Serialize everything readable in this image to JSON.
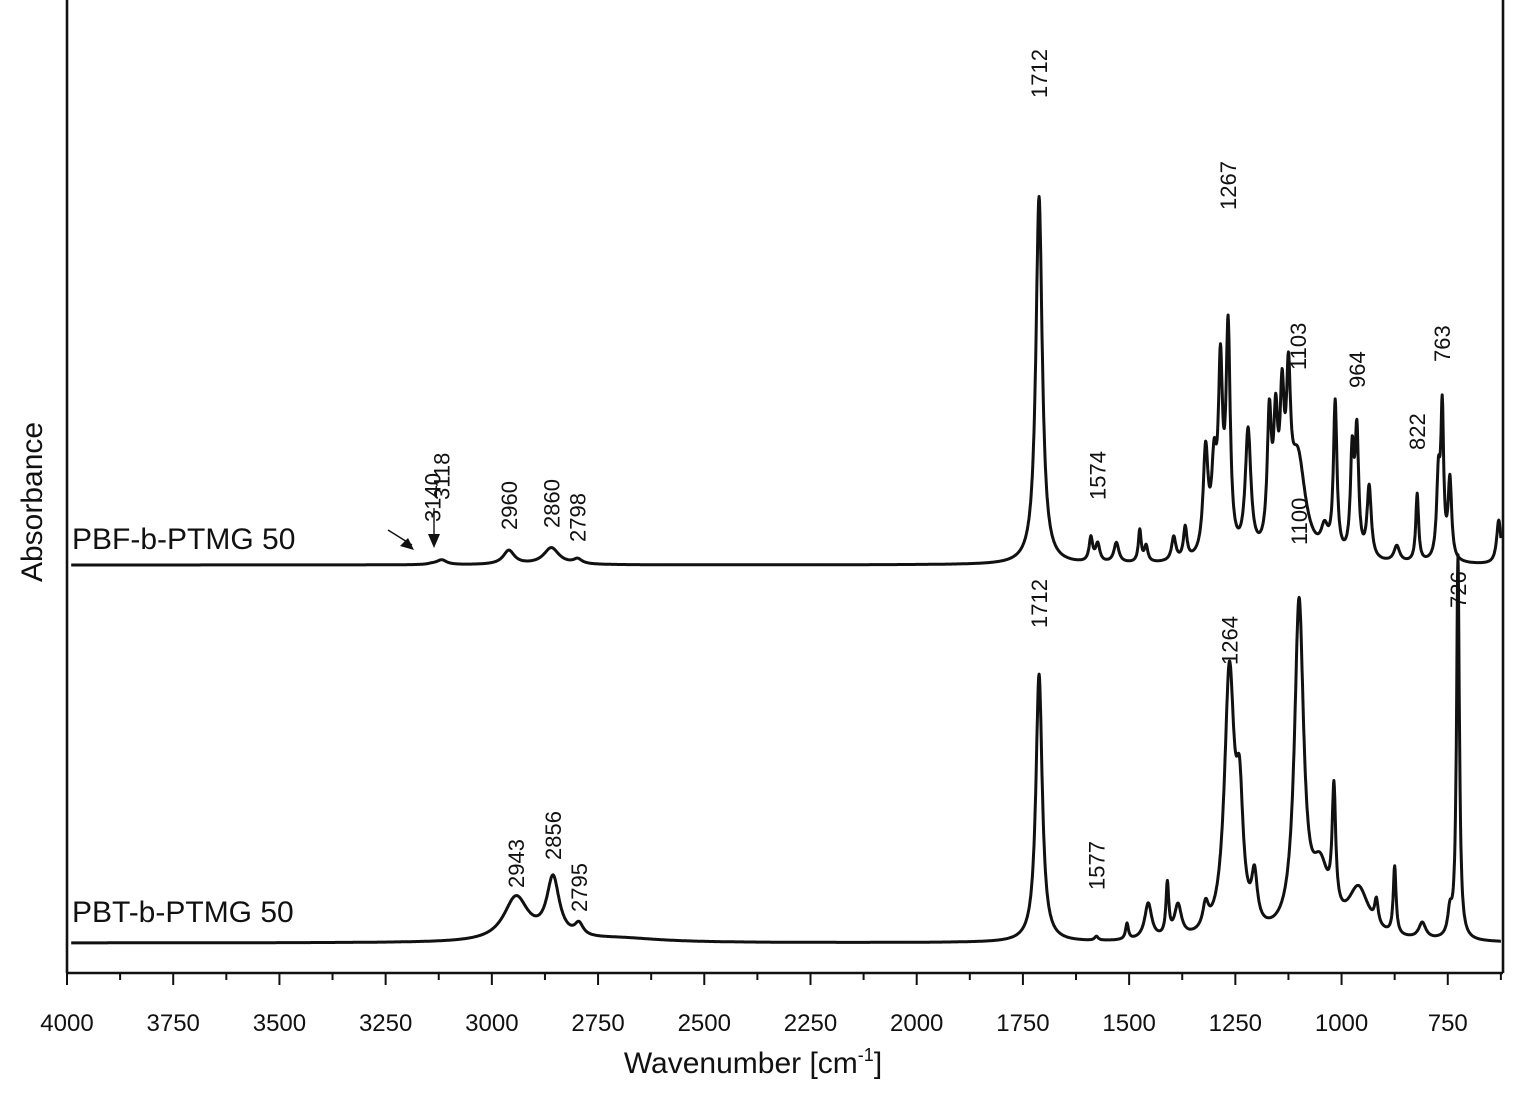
{
  "chart_data": {
    "type": "line",
    "xlabel": "Wavenumber [cm⁻¹]",
    "ylabel": "Absorbance",
    "x_reversed": true,
    "xlim": [
      4000,
      620
    ],
    "x_ticks": [
      4000,
      3750,
      3500,
      3250,
      3000,
      2750,
      2500,
      2250,
      2000,
      1750,
      1500,
      1250,
      1000,
      750
    ],
    "y_ticks_shown": false,
    "grid": false,
    "legend": "none",
    "series": [
      {
        "name": "PBF-b-PTMG 50",
        "baseline_offset": 1.0,
        "peaks": [
          {
            "x": 3140,
            "y": 0.002,
            "w": 12
          },
          {
            "x": 3118,
            "y": 0.012,
            "w": 14
          },
          {
            "x": 2960,
            "y": 0.035,
            "w": 16
          },
          {
            "x": 2860,
            "y": 0.042,
            "w": 22
          },
          {
            "x": 2798,
            "y": 0.012,
            "w": 12
          },
          {
            "x": 1712,
            "y": 0.92,
            "w": 9
          },
          {
            "x": 1590,
            "y": 0.06,
            "w": 5
          },
          {
            "x": 1574,
            "y": 0.045,
            "w": 6
          },
          {
            "x": 1530,
            "y": 0.05,
            "w": 7
          },
          {
            "x": 1475,
            "y": 0.08,
            "w": 4
          },
          {
            "x": 1460,
            "y": 0.04,
            "w": 5
          },
          {
            "x": 1395,
            "y": 0.06,
            "w": 6
          },
          {
            "x": 1368,
            "y": 0.08,
            "w": 5
          },
          {
            "x": 1320,
            "y": 0.26,
            "w": 7
          },
          {
            "x": 1300,
            "y": 0.2,
            "w": 7
          },
          {
            "x": 1285,
            "y": 0.44,
            "w": 6
          },
          {
            "x": 1267,
            "y": 0.55,
            "w": 6
          },
          {
            "x": 1220,
            "y": 0.31,
            "w": 8
          },
          {
            "x": 1170,
            "y": 0.32,
            "w": 6
          },
          {
            "x": 1155,
            "y": 0.28,
            "w": 6
          },
          {
            "x": 1140,
            "y": 0.32,
            "w": 6
          },
          {
            "x": 1125,
            "y": 0.34,
            "w": 6
          },
          {
            "x": 1103,
            "y": 0.25,
            "w": 22
          },
          {
            "x": 1040,
            "y": 0.06,
            "w": 10
          },
          {
            "x": 1015,
            "y": 0.38,
            "w": 5
          },
          {
            "x": 975,
            "y": 0.25,
            "w": 5
          },
          {
            "x": 964,
            "y": 0.3,
            "w": 5
          },
          {
            "x": 935,
            "y": 0.18,
            "w": 6
          },
          {
            "x": 870,
            "y": 0.04,
            "w": 8
          },
          {
            "x": 822,
            "y": 0.17,
            "w": 4
          },
          {
            "x": 772,
            "y": 0.2,
            "w": 5
          },
          {
            "x": 763,
            "y": 0.36,
            "w": 4
          },
          {
            "x": 745,
            "y": 0.2,
            "w": 5
          },
          {
            "x": 630,
            "y": 0.11,
            "w": 6
          }
        ],
        "peak_labels": [
          {
            "x": 3140,
            "text": "3140"
          },
          {
            "x": 3118,
            "text": "3118"
          },
          {
            "x": 2960,
            "text": "2960"
          },
          {
            "x": 2860,
            "text": "2860"
          },
          {
            "x": 2798,
            "text": "2798"
          },
          {
            "x": 1712,
            "text": "1712"
          },
          {
            "x": 1574,
            "text": "1574"
          },
          {
            "x": 1267,
            "text": "1267"
          },
          {
            "x": 1103,
            "text": "1103"
          },
          {
            "x": 964,
            "text": "964"
          },
          {
            "x": 822,
            "text": "822"
          },
          {
            "x": 763,
            "text": "763"
          }
        ]
      },
      {
        "name": "PBT-b-PTMG 50",
        "baseline_offset": 0.0,
        "peaks": [
          {
            "x": 2943,
            "y": 0.11,
            "w": 35
          },
          {
            "x": 2856,
            "y": 0.15,
            "w": 18
          },
          {
            "x": 2795,
            "y": 0.03,
            "w": 12
          },
          {
            "x": 2700,
            "y": 0.01,
            "w": 120
          },
          {
            "x": 1712,
            "y": 0.67,
            "w": 9
          },
          {
            "x": 1577,
            "y": 0.01,
            "w": 5
          },
          {
            "x": 1505,
            "y": 0.04,
            "w": 4
          },
          {
            "x": 1455,
            "y": 0.09,
            "w": 10
          },
          {
            "x": 1410,
            "y": 0.13,
            "w": 4
          },
          {
            "x": 1385,
            "y": 0.08,
            "w": 10
          },
          {
            "x": 1320,
            "y": 0.06,
            "w": 8
          },
          {
            "x": 1264,
            "y": 0.65,
            "w": 14
          },
          {
            "x": 1240,
            "y": 0.28,
            "w": 10
          },
          {
            "x": 1205,
            "y": 0.12,
            "w": 8
          },
          {
            "x": 1100,
            "y": 0.82,
            "w": 13
          },
          {
            "x": 1050,
            "y": 0.15,
            "w": 25
          },
          {
            "x": 1018,
            "y": 0.3,
            "w": 5
          },
          {
            "x": 960,
            "y": 0.12,
            "w": 30
          },
          {
            "x": 918,
            "y": 0.06,
            "w": 5
          },
          {
            "x": 875,
            "y": 0.17,
            "w": 4
          },
          {
            "x": 810,
            "y": 0.04,
            "w": 10
          },
          {
            "x": 745,
            "y": 0.06,
            "w": 6
          },
          {
            "x": 726,
            "y": 0.96,
            "w": 4
          }
        ],
        "peak_labels": [
          {
            "x": 2943,
            "text": "2943"
          },
          {
            "x": 2856,
            "text": "2856"
          },
          {
            "x": 2795,
            "text": "2795"
          },
          {
            "x": 1712,
            "text": "1712"
          },
          {
            "x": 1577,
            "text": "1577"
          },
          {
            "x": 1264,
            "text": "1264"
          },
          {
            "x": 1100,
            "text": "1100"
          },
          {
            "x": 726,
            "text": "726"
          }
        ]
      }
    ]
  }
}
